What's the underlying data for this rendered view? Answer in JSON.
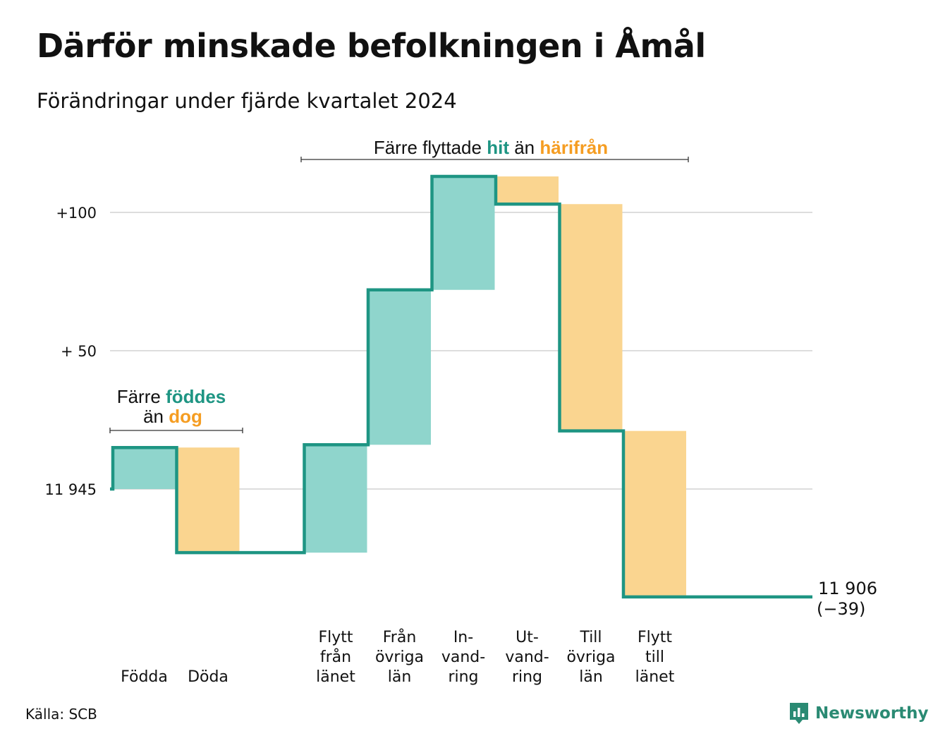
{
  "title": "Därför minskade befolkningen i Åmål",
  "subtitle": "Förändringar under fjärde kvartalet 2024",
  "source": "Källa: SCB",
  "logo": {
    "text": "Newsworthy",
    "icon": "bar-chart-speech-icon"
  },
  "colors": {
    "increase": "#8fd5cc",
    "decrease": "#fad590",
    "line": "#1e9583",
    "grid": "#dddddd",
    "highlight_teal": "#1e9583",
    "highlight_orange": "#f59d22"
  },
  "annotations": {
    "natural": {
      "line1_pre": "Färre ",
      "line1_hl": "föddes",
      "line2_pre": "än ",
      "line2_hl": "dog"
    },
    "migration": {
      "pre": "Färre flyttade ",
      "hl1": "hit",
      "mid": " än ",
      "hl2": "härifrån"
    }
  },
  "chart_data": {
    "type": "waterfall",
    "start_value": 11945,
    "ylim": [
      -40,
      115
    ],
    "y_ticks": [
      {
        "value": 0,
        "label": "11 945"
      },
      {
        "value": 50,
        "label": "+ 50"
      },
      {
        "value": 100,
        "label": "+100"
      }
    ],
    "steps": [
      {
        "label": "Födda",
        "label_lines": [
          "Födda"
        ],
        "change": 15,
        "kind": "increase"
      },
      {
        "label": "Döda",
        "label_lines": [
          "Döda"
        ],
        "change": -38,
        "kind": "decrease"
      },
      {
        "label": "Flytt från länet",
        "label_lines": [
          "Flytt",
          "från",
          "länet"
        ],
        "change": 39,
        "kind": "increase"
      },
      {
        "label": "Från övriga län",
        "label_lines": [
          "Från",
          "övriga",
          "län"
        ],
        "change": 56,
        "kind": "increase"
      },
      {
        "label": "In-vandring",
        "label_lines": [
          "In-",
          "vand-",
          "ring"
        ],
        "change": 41,
        "kind": "increase"
      },
      {
        "label": "Ut-vandring",
        "label_lines": [
          "Ut-",
          "vand-",
          "ring"
        ],
        "change": -10,
        "kind": "decrease"
      },
      {
        "label": "Till övriga län",
        "label_lines": [
          "Till",
          "övriga",
          "län"
        ],
        "change": -82,
        "kind": "decrease"
      },
      {
        "label": "Flytt till länet",
        "label_lines": [
          "Flytt",
          "till",
          "länet"
        ],
        "change": -60,
        "kind": "decrease"
      }
    ],
    "end_label": "11 906",
    "end_change_label": "(−39)",
    "grid": true,
    "legend": "none"
  }
}
